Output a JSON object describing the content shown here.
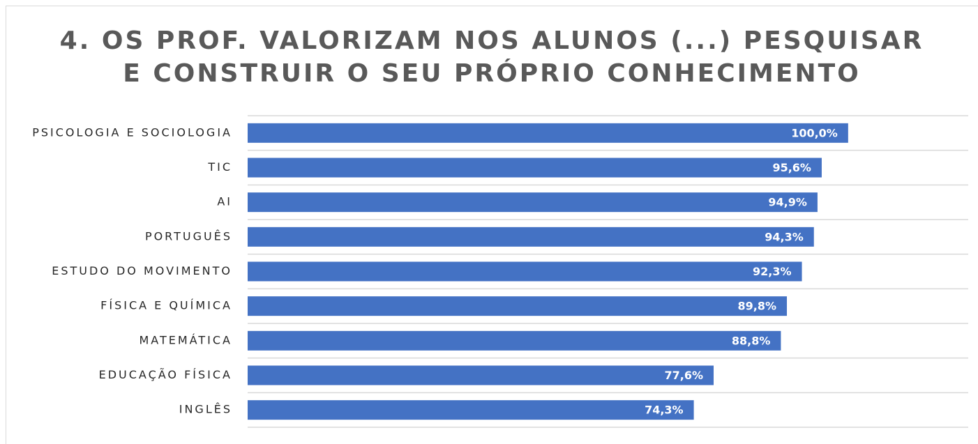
{
  "chart_data": {
    "type": "bar",
    "orientation": "horizontal",
    "title": [
      "4. OS PROF. VALORIZAM NOS ALUNOS (...) PESQUISAR",
      "E CONSTRUIR O SEU PRÓPRIO CONHECIMENTO"
    ],
    "categories": [
      "PSICOLOGIA E SOCIOLOGIA",
      "TIC",
      "AI",
      "PORTUGUÊS",
      "ESTUDO DO MOVIMENTO",
      "FÍSICA E QUÍMICA",
      "MATEMÁTICA",
      "EDUCAÇÃO FÍSICA",
      "INGLÊS"
    ],
    "values": [
      100.0,
      95.6,
      94.9,
      94.3,
      92.3,
      89.8,
      88.8,
      77.6,
      74.3
    ],
    "value_labels": [
      "100,0%",
      "95,6%",
      "94,9%",
      "94,3%",
      "92,3%",
      "89,8%",
      "88,8%",
      "77,6%",
      "74,3%"
    ],
    "color": "#4472c4",
    "xlim": [
      0,
      120
    ]
  }
}
